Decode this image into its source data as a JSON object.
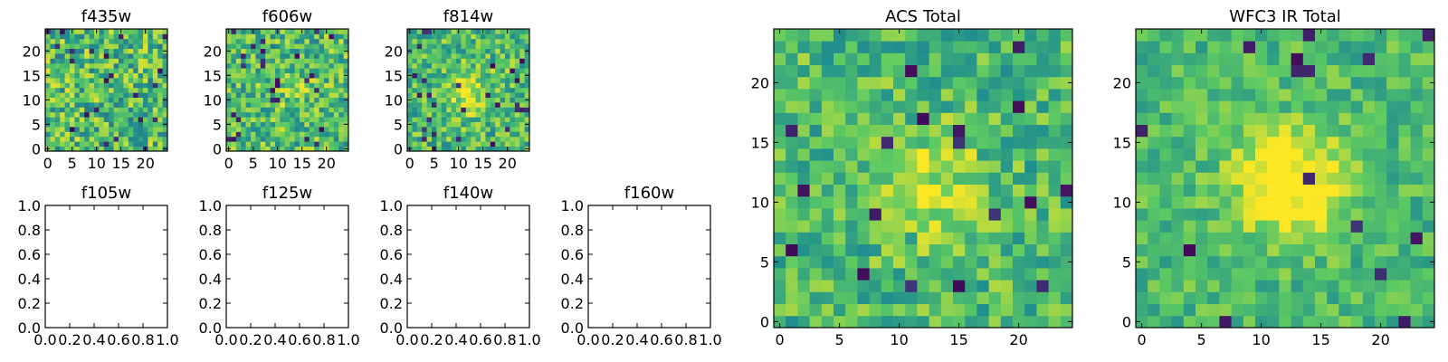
{
  "chart_data": [
    {
      "type": "heatmap",
      "title": "f435w",
      "image_size": 25,
      "xticks": [
        0,
        5,
        10,
        15,
        20
      ],
      "yticks": [
        0,
        5,
        10,
        15,
        20
      ],
      "xlim": [
        -0.5,
        24.5
      ],
      "ylim": [
        -0.5,
        24.5
      ],
      "colormap": "viridis",
      "blob_strength": 0.0,
      "noise_level": 0.55,
      "value_range": [
        0,
        1
      ]
    },
    {
      "type": "heatmap",
      "title": "f606w",
      "image_size": 25,
      "xticks": [
        0,
        5,
        10,
        15,
        20
      ],
      "yticks": [
        0,
        5,
        10,
        15,
        20
      ],
      "xlim": [
        -0.5,
        24.5
      ],
      "ylim": [
        -0.5,
        24.5
      ],
      "colormap": "viridis",
      "blob_strength": 0.1,
      "noise_level": 0.5,
      "value_range": [
        0,
        1
      ]
    },
    {
      "type": "heatmap",
      "title": "f814w",
      "image_size": 25,
      "xticks": [
        0,
        5,
        10,
        15,
        20
      ],
      "yticks": [
        0,
        5,
        10,
        15,
        20
      ],
      "xlim": [
        -0.5,
        24.5
      ],
      "ylim": [
        -0.5,
        24.5
      ],
      "colormap": "viridis",
      "blob_strength": 0.25,
      "noise_level": 0.45,
      "value_range": [
        0,
        1
      ]
    },
    {
      "type": "heatmap",
      "title": "ACS Total",
      "image_size": 25,
      "xticks": [
        0,
        5,
        10,
        15,
        20
      ],
      "yticks": [
        0,
        5,
        10,
        15,
        20
      ],
      "xlim": [
        -0.5,
        24.5
      ],
      "ylim": [
        -0.5,
        24.5
      ],
      "colormap": "viridis",
      "blob_strength": 0.22,
      "noise_level": 0.4,
      "value_range": [
        0,
        1
      ]
    },
    {
      "type": "heatmap",
      "title": "WFC3 IR Total",
      "image_size": 25,
      "xticks": [
        0,
        5,
        10,
        15,
        20
      ],
      "yticks": [
        0,
        5,
        10,
        15,
        20
      ],
      "xlim": [
        -0.5,
        24.5
      ],
      "ylim": [
        -0.5,
        24.5
      ],
      "colormap": "viridis",
      "blob_strength": 0.45,
      "noise_level": 0.3,
      "value_range": [
        0,
        1
      ]
    },
    {
      "type": "empty",
      "title": "f105w",
      "xlim": [
        0,
        1
      ],
      "ylim": [
        0,
        1
      ],
      "xtick_labels": [
        "0.0",
        "0.2",
        "0.4",
        "0.6",
        "0.8",
        "1.0"
      ],
      "ytick_labels": [
        "0.0",
        "0.2",
        "0.4",
        "0.6",
        "0.8",
        "1.0"
      ]
    },
    {
      "type": "empty",
      "title": "f125w",
      "xlim": [
        0,
        1
      ],
      "ylim": [
        0,
        1
      ],
      "xtick_labels": [
        "0.0",
        "0.2",
        "0.4",
        "0.6",
        "0.8",
        "1.0"
      ],
      "ytick_labels": [
        "0.0",
        "0.2",
        "0.4",
        "0.6",
        "0.8",
        "1.0"
      ]
    },
    {
      "type": "empty",
      "title": "f140w",
      "xlim": [
        0,
        1
      ],
      "ylim": [
        0,
        1
      ],
      "xtick_labels": [
        "0.0",
        "0.2",
        "0.4",
        "0.6",
        "0.8",
        "1.0"
      ],
      "ytick_labels": [
        "0.0",
        "0.2",
        "0.4",
        "0.6",
        "0.8",
        "1.0"
      ]
    },
    {
      "type": "empty",
      "title": "f160w",
      "xlim": [
        0,
        1
      ],
      "ylim": [
        0,
        1
      ],
      "xtick_labels": [
        "0.0",
        "0.2",
        "0.4",
        "0.6",
        "0.8",
        "1.0"
      ],
      "ytick_labels": [
        "0.0",
        "0.2",
        "0.4",
        "0.6",
        "0.8",
        "1.0"
      ]
    }
  ],
  "colors": {
    "frame": "#000000",
    "background": "#ffffff",
    "viridis_stops": [
      "#440154",
      "#3b528b",
      "#21908d",
      "#5dc963",
      "#fde725"
    ]
  }
}
